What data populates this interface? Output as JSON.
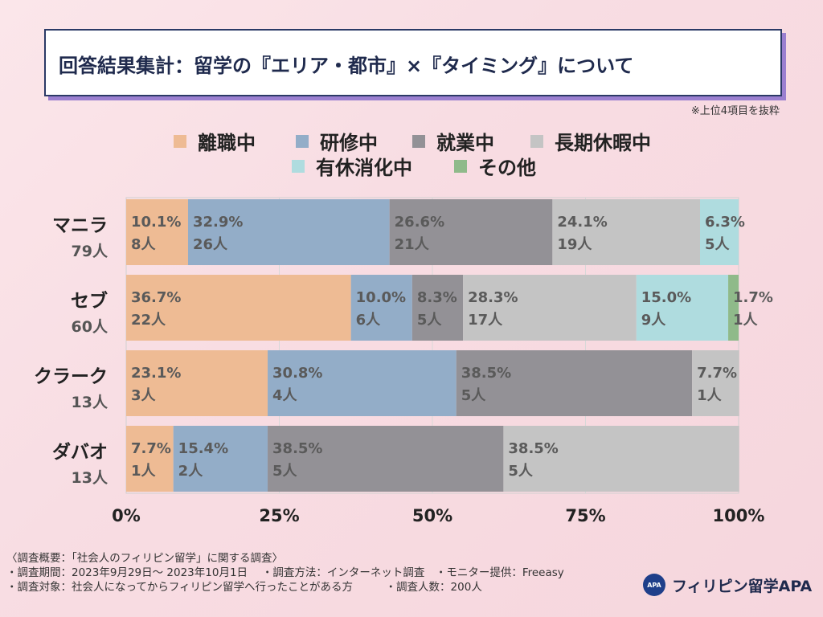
{
  "header": {
    "title": "回答結果集計：留学の『エリア・都市』×『タイミング』について",
    "note": "※上位4項目を抜粋"
  },
  "chart_data": {
    "type": "bar",
    "orientation": "horizontal-stacked-100",
    "legend_placement": "top",
    "series": [
      {
        "name": "離職中",
        "color": "#eebb94"
      },
      {
        "name": "研修中",
        "color": "#93adc8"
      },
      {
        "name": "就業中",
        "color": "#939196"
      },
      {
        "name": "長期休暇中",
        "color": "#c4c4c4"
      },
      {
        "name": "有休消化中",
        "color": "#afdcdf"
      },
      {
        "name": "その他",
        "color": "#8fba8a"
      }
    ],
    "categories": [
      {
        "name": "マニラ",
        "total": "79人",
        "segments": [
          {
            "series": "離職中",
            "pct": 10.1,
            "pct_label": "10.1%",
            "count_label": "8人"
          },
          {
            "series": "研修中",
            "pct": 32.9,
            "pct_label": "32.9%",
            "count_label": "26人"
          },
          {
            "series": "就業中",
            "pct": 26.6,
            "pct_label": "26.6%",
            "count_label": "21人"
          },
          {
            "series": "長期休暇中",
            "pct": 24.1,
            "pct_label": "24.1%",
            "count_label": "19人"
          },
          {
            "series": "有休消化中",
            "pct": 6.3,
            "pct_label": "6.3%",
            "count_label": "5人"
          }
        ]
      },
      {
        "name": "セブ",
        "total": "60人",
        "segments": [
          {
            "series": "離職中",
            "pct": 36.7,
            "pct_label": "36.7%",
            "count_label": "22人"
          },
          {
            "series": "研修中",
            "pct": 10.0,
            "pct_label": "10.0%",
            "count_label": "6人"
          },
          {
            "series": "就業中",
            "pct": 8.3,
            "pct_label": "8.3%",
            "count_label": "5人"
          },
          {
            "series": "長期休暇中",
            "pct": 28.3,
            "pct_label": "28.3%",
            "count_label": "17人"
          },
          {
            "series": "有休消化中",
            "pct": 15.0,
            "pct_label": "15.0%",
            "count_label": "9人"
          },
          {
            "series": "その他",
            "pct": 1.7,
            "pct_label": "1.7%",
            "count_label": "1人"
          }
        ]
      },
      {
        "name": "クラーク",
        "total": "13人",
        "segments": [
          {
            "series": "離職中",
            "pct": 23.1,
            "pct_label": "23.1%",
            "count_label": "3人"
          },
          {
            "series": "研修中",
            "pct": 30.8,
            "pct_label": "30.8%",
            "count_label": "4人"
          },
          {
            "series": "就業中",
            "pct": 38.5,
            "pct_label": "38.5%",
            "count_label": "5人"
          },
          {
            "series": "長期休暇中",
            "pct": 7.7,
            "pct_label": "7.7%",
            "count_label": "1人"
          }
        ]
      },
      {
        "name": "ダバオ",
        "total": "13人",
        "segments": [
          {
            "series": "離職中",
            "pct": 7.7,
            "pct_label": "7.7%",
            "count_label": "1人"
          },
          {
            "series": "研修中",
            "pct": 15.4,
            "pct_label": "15.4%",
            "count_label": "2人"
          },
          {
            "series": "就業中",
            "pct": 38.5,
            "pct_label": "38.5%",
            "count_label": "5人"
          },
          {
            "series": "長期休暇中",
            "pct": 38.5,
            "pct_label": "38.5%",
            "count_label": "5人"
          }
        ]
      }
    ],
    "x_ticks": [
      "0%",
      "25%",
      "50%",
      "75%",
      "100%"
    ],
    "xlim": [
      0,
      100
    ]
  },
  "footer": {
    "line1": "〈調査概要：「社会人のフィリピン留学」に関する調査〉",
    "line2": "・調査期間：2023年9月29日～ 2023年10月1日　 ・調査方法：インターネット調査　・モニター提供：Freeasy",
    "line3": "・調査対象：社会人になってからフィリピン留学へ行ったことがある方　　　・調査人数：200人"
  },
  "logo": {
    "mark": "APA",
    "text": "フィリピン留学APA"
  }
}
